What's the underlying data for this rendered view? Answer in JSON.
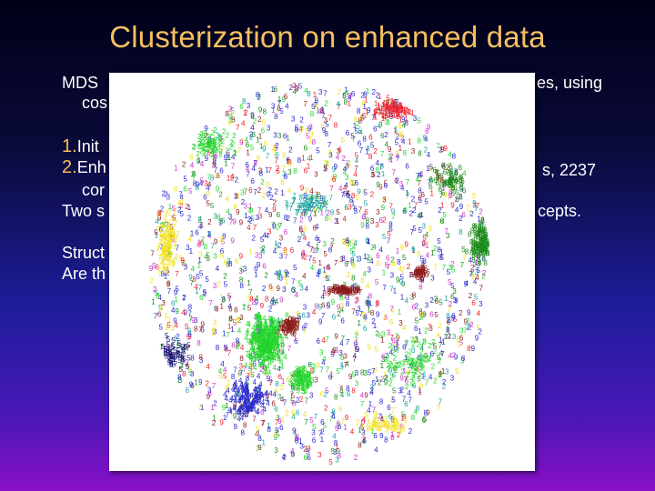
{
  "slide": {
    "title": "Clusterization on enhanced data",
    "lines": [
      {
        "id": "mds",
        "text": "MDS",
        "right": "es, using"
      },
      {
        "id": "cos",
        "text": "cos"
      },
      {
        "id": "item1",
        "num": "1.",
        "text": "Init"
      },
      {
        "id": "item2",
        "num": "2.",
        "text": "Enh",
        "right": "s, 2237"
      },
      {
        "id": "item2b",
        "text": "cor"
      },
      {
        "id": "two",
        "text": "Two s",
        "right": "cepts."
      },
      {
        "id": "struct",
        "text": "Struct"
      },
      {
        "id": "arethe",
        "text": "Are th"
      }
    ]
  },
  "figure": {
    "description_glyphs": "digits 1-9 scattered in colored clusters",
    "colors": {
      "red": "#e8202a",
      "green": "#22d42a",
      "dark_green": "#1a8a1a",
      "blue": "#2828cc",
      "yellow": "#f0e020",
      "cyan": "#18a0a0",
      "magenta": "#cc30cc",
      "dark_red": "#8a1a1a",
      "navy": "#101070"
    }
  }
}
